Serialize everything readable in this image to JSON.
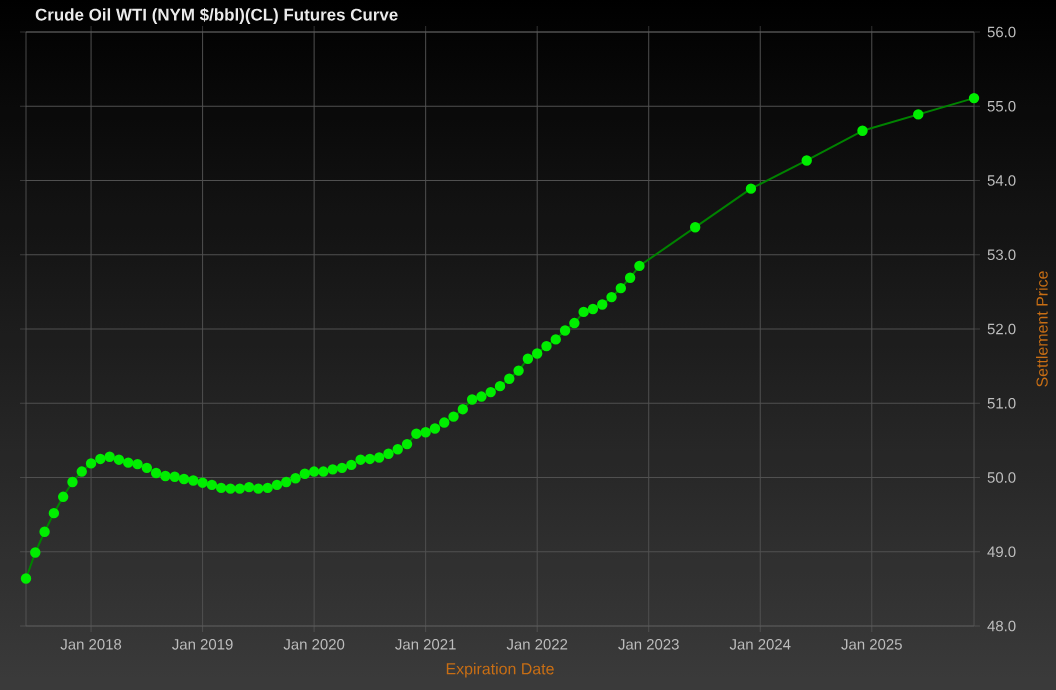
{
  "chart_data": {
    "type": "line",
    "title": "Crude Oil WTI (NYM $/bbl)(CL) Futures Curve",
    "xlabel": "Expiration Date",
    "ylabel": "Settlement Price",
    "x": [
      "2017-06",
      "2017-07",
      "2017-08",
      "2017-09",
      "2017-10",
      "2017-11",
      "2017-12",
      "2018-01",
      "2018-02",
      "2018-03",
      "2018-04",
      "2018-05",
      "2018-06",
      "2018-07",
      "2018-08",
      "2018-09",
      "2018-10",
      "2018-11",
      "2018-12",
      "2019-01",
      "2019-02",
      "2019-03",
      "2019-04",
      "2019-05",
      "2019-06",
      "2019-07",
      "2019-08",
      "2019-09",
      "2019-10",
      "2019-11",
      "2019-12",
      "2020-01",
      "2020-02",
      "2020-03",
      "2020-04",
      "2020-05",
      "2020-06",
      "2020-07",
      "2020-08",
      "2020-09",
      "2020-10",
      "2020-11",
      "2020-12",
      "2021-01",
      "2021-02",
      "2021-03",
      "2021-04",
      "2021-05",
      "2021-06",
      "2021-07",
      "2021-08",
      "2021-09",
      "2021-10",
      "2021-11",
      "2021-12",
      "2022-01",
      "2022-02",
      "2022-03",
      "2022-04",
      "2022-05",
      "2022-06",
      "2022-07",
      "2022-08",
      "2022-09",
      "2022-10",
      "2022-11",
      "2022-12",
      "2023-06",
      "2023-12",
      "2024-06",
      "2024-12",
      "2025-06",
      "2025-12"
    ],
    "series": [
      {
        "color": "#00ee00",
        "values": [
          48.64,
          48.99,
          49.27,
          49.52,
          49.74,
          49.94,
          50.08,
          50.19,
          50.25,
          50.28,
          50.24,
          50.2,
          50.18,
          50.13,
          50.06,
          50.02,
          50.01,
          49.98,
          49.96,
          49.93,
          49.9,
          49.86,
          49.85,
          49.85,
          49.87,
          49.85,
          49.86,
          49.9,
          49.94,
          49.99,
          50.05,
          50.08,
          50.08,
          50.11,
          50.13,
          50.17,
          50.24,
          50.25,
          50.27,
          50.32,
          50.38,
          50.45,
          50.59,
          50.61,
          50.66,
          50.74,
          50.82,
          50.92,
          51.05,
          51.09,
          51.15,
          51.23,
          51.33,
          51.44,
          51.6,
          51.67,
          51.77,
          51.86,
          51.98,
          52.08,
          52.23,
          52.27,
          52.33,
          52.43,
          52.55,
          52.69,
          52.85,
          53.37,
          53.89,
          54.27,
          54.67,
          54.89,
          55.11
        ]
      }
    ],
    "marker": "circle",
    "grid": true,
    "xlim": [
      "2017-06",
      "2025-12"
    ],
    "xticks": [
      {
        "value": "2018-01",
        "label": "Jan 2018"
      },
      {
        "value": "2019-01",
        "label": "Jan 2019"
      },
      {
        "value": "2020-01",
        "label": "Jan 2020"
      },
      {
        "value": "2021-01",
        "label": "Jan 2021"
      },
      {
        "value": "2022-01",
        "label": "Jan 2022"
      },
      {
        "value": "2023-01",
        "label": "Jan 2023"
      },
      {
        "value": "2024-01",
        "label": "Jan 2024"
      },
      {
        "value": "2025-01",
        "label": "Jan 2025"
      }
    ],
    "ylim": [
      48,
      56
    ],
    "yticks": [
      {
        "value": 48,
        "label": "48.0"
      },
      {
        "value": 49,
        "label": "49.0"
      },
      {
        "value": 50,
        "label": "50.0"
      },
      {
        "value": 51,
        "label": "51.0"
      },
      {
        "value": 52,
        "label": "52.0"
      },
      {
        "value": 53,
        "label": "53.0"
      },
      {
        "value": 54,
        "label": "54.0"
      },
      {
        "value": 55,
        "label": "55.0"
      },
      {
        "value": 56,
        "label": "56.0"
      }
    ]
  }
}
